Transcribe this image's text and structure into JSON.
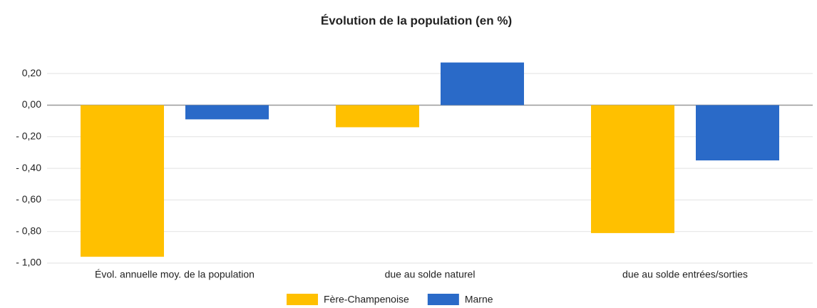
{
  "chart_data": {
    "type": "bar",
    "title": "Évolution de la population (en %)",
    "categories": [
      "Évol. annuelle moy. de la population",
      "due au solde naturel",
      "due au solde entrées/sorties"
    ],
    "series": [
      {
        "name": "Fère-Champenoise",
        "color": "#ffc000",
        "values": [
          -0.96,
          -0.14,
          -0.81
        ]
      },
      {
        "name": "Marne",
        "color": "#2a6ac8",
        "values": [
          -0.09,
          0.27,
          -0.35
        ]
      }
    ],
    "ylim": [
      -1.0,
      0.3
    ],
    "yticks": [
      {
        "value": 0.2,
        "label": "0,20"
      },
      {
        "value": 0.0,
        "label": "0,00"
      },
      {
        "value": -0.2,
        "label": "- 0,20"
      },
      {
        "value": -0.4,
        "label": "- 0,40"
      },
      {
        "value": -0.6,
        "label": "- 0,60"
      },
      {
        "value": -0.8,
        "label": "- 0,80"
      },
      {
        "value": -1.0,
        "label": "- 1,00"
      }
    ],
    "grid": true,
    "legend": "bottom"
  }
}
